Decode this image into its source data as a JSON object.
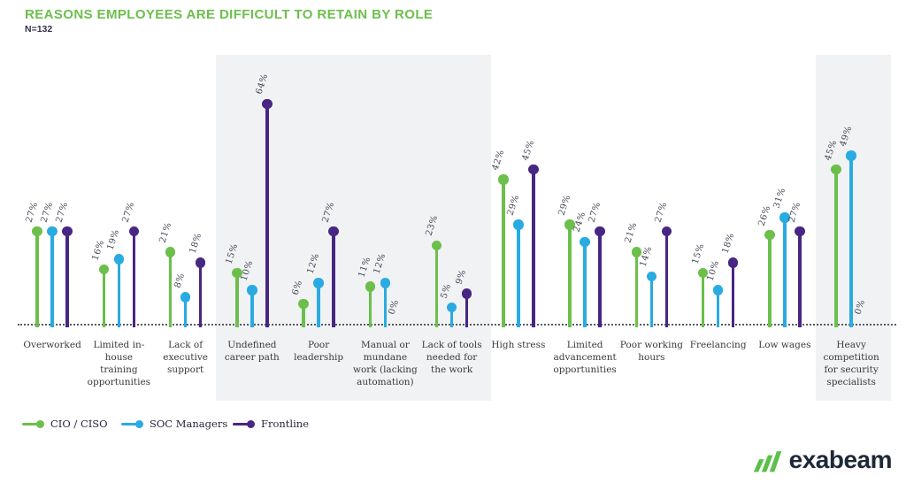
{
  "header": {
    "title": "REASONS EMPLOYEES ARE DIFFICULT TO RETAIN BY ROLE",
    "sample": "N=132"
  },
  "colors": {
    "green": "#6cbf4b",
    "blue": "#29abe2",
    "purple": "#482683",
    "highlight": "#f1f2f4",
    "ink": "#30304a"
  },
  "chart_data": {
    "type": "bar",
    "style": "lollipop",
    "title": "REASONS EMPLOYEES ARE DIFFICULT TO RETAIN BY ROLE",
    "subtitle": "N=132",
    "value_suffix": "%",
    "categories": [
      "Overworked",
      "Limited in-house training opportunities",
      "Lack of executive support",
      "Undefined career path",
      "Poor leadership",
      "Manual or mundane work (lacking automation)",
      "Lack of tools needed for the work",
      "High stress",
      "Limited advancement opportunities",
      "Poor working hours",
      "Freelancing",
      "Low wages",
      "Heavy competition for security specialists"
    ],
    "series": [
      {
        "name": "CIO / CISO",
        "color": "#6cbf4b",
        "values": [
          27,
          16,
          21,
          15,
          6,
          11,
          23,
          42,
          29,
          21,
          15,
          26,
          45
        ]
      },
      {
        "name": "SOC Managers",
        "color": "#29abe2",
        "values": [
          27,
          19,
          8,
          10,
          12,
          12,
          5,
          29,
          24,
          14,
          10,
          31,
          49
        ]
      },
      {
        "name": "Frontline",
        "color": "#482683",
        "values": [
          27,
          27,
          18,
          64,
          27,
          0,
          9,
          45,
          27,
          27,
          18,
          27,
          0
        ]
      }
    ],
    "highlighted_category_ranges": [
      [
        3,
        6
      ],
      [
        12,
        12
      ]
    ],
    "legend_position": "bottom-left",
    "grid": false
  },
  "legend": {
    "items": [
      {
        "label": "CIO / CISO",
        "color": "#6cbf4b"
      },
      {
        "label": "SOC Managers",
        "color": "#29abe2"
      },
      {
        "label": "Frontline",
        "color": "#482683"
      }
    ]
  },
  "logo": {
    "brand": "exabeam"
  }
}
